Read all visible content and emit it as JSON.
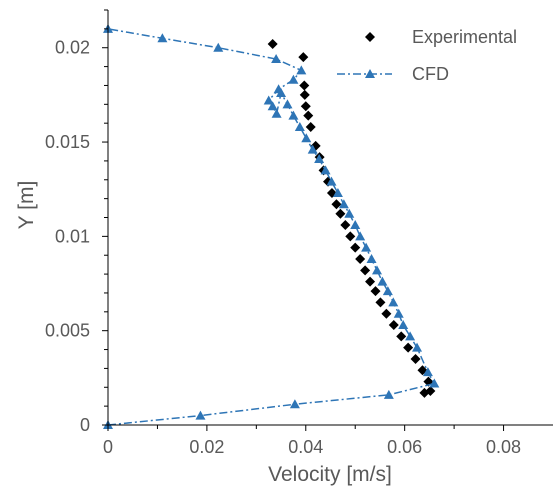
{
  "chart_data": {
    "type": "scatter",
    "xlabel": "Velocity [m/s]",
    "ylabel": "Y [m]",
    "xlim": [
      0,
      0.09
    ],
    "ylim": [
      0,
      0.022
    ],
    "x_ticks": [
      {
        "value": 0,
        "label": "0"
      },
      {
        "value": 0.02,
        "label": "0.02"
      },
      {
        "value": 0.04,
        "label": "0.04"
      },
      {
        "value": 0.06,
        "label": "0.06"
      },
      {
        "value": 0.08,
        "label": "0.08"
      }
    ],
    "y_ticks": [
      {
        "value": 0,
        "label": "0"
      },
      {
        "value": 0.005,
        "label": "0.005"
      },
      {
        "value": 0.01,
        "label": "0.01"
      },
      {
        "value": 0.015,
        "label": "0.015"
      },
      {
        "value": 0.02,
        "label": "0.02"
      }
    ],
    "grid": false,
    "legend_position": "top-right",
    "series": [
      {
        "name": "Experimental",
        "marker": "diamond",
        "line": "none",
        "color": "#000000",
        "points": [
          [
            0.0333,
            0.0202
          ],
          [
            0.0395,
            0.0195
          ],
          [
            0.0397,
            0.018
          ],
          [
            0.0398,
            0.0175
          ],
          [
            0.04,
            0.0169
          ],
          [
            0.0405,
            0.0164
          ],
          [
            0.041,
            0.0158
          ],
          [
            0.042,
            0.0148
          ],
          [
            0.0428,
            0.0142
          ],
          [
            0.0436,
            0.0135
          ],
          [
            0.0445,
            0.0129
          ],
          [
            0.0453,
            0.0123
          ],
          [
            0.0462,
            0.0117
          ],
          [
            0.047,
            0.0112
          ],
          [
            0.048,
            0.0106
          ],
          [
            0.049,
            0.01
          ],
          [
            0.05,
            0.0094
          ],
          [
            0.051,
            0.0088
          ],
          [
            0.052,
            0.0082
          ],
          [
            0.053,
            0.0076
          ],
          [
            0.0541,
            0.0071
          ],
          [
            0.0551,
            0.0065
          ],
          [
            0.0563,
            0.0059
          ],
          [
            0.0578,
            0.0053
          ],
          [
            0.0593,
            0.0047
          ],
          [
            0.0607,
            0.0041
          ],
          [
            0.0622,
            0.0035
          ],
          [
            0.0636,
            0.0029
          ],
          [
            0.0648,
            0.0023
          ],
          [
            0.0652,
            0.0018
          ],
          [
            0.064,
            0.0017
          ]
        ]
      },
      {
        "name": "CFD",
        "marker": "triangle",
        "line": "dash-dot",
        "color": "#2e75b6",
        "points": [
          [
            0.0,
            0.0
          ],
          [
            0.0187,
            0.0005
          ],
          [
            0.0378,
            0.0011
          ],
          [
            0.0568,
            0.0016
          ],
          [
            0.066,
            0.0022
          ],
          [
            0.0647,
            0.0028
          ],
          [
            0.0625,
            0.0041
          ],
          [
            0.0611,
            0.0047
          ],
          [
            0.0597,
            0.0053
          ],
          [
            0.0588,
            0.0059
          ],
          [
            0.0577,
            0.0065
          ],
          [
            0.0566,
            0.0071
          ],
          [
            0.0555,
            0.0076
          ],
          [
            0.0544,
            0.0082
          ],
          [
            0.0533,
            0.0088
          ],
          [
            0.0522,
            0.0094
          ],
          [
            0.051,
            0.01
          ],
          [
            0.05,
            0.0106
          ],
          [
            0.0488,
            0.0112
          ],
          [
            0.0477,
            0.0117
          ],
          [
            0.0465,
            0.0123
          ],
          [
            0.0452,
            0.0129
          ],
          [
            0.044,
            0.0135
          ],
          [
            0.0427,
            0.0141
          ],
          [
            0.0414,
            0.0146
          ],
          [
            0.0401,
            0.0152
          ],
          [
            0.0388,
            0.0158
          ],
          [
            0.0375,
            0.0164
          ],
          [
            0.0363,
            0.017
          ],
          [
            0.035,
            0.0176
          ],
          [
            0.0341,
            0.0165
          ],
          [
            0.0333,
            0.0169
          ],
          [
            0.0325,
            0.0172
          ],
          [
            0.0345,
            0.0178
          ],
          [
            0.0375,
            0.0183
          ],
          [
            0.0391,
            0.0188
          ],
          [
            0.034,
            0.0194
          ],
          [
            0.0223,
            0.02
          ],
          [
            0.011,
            0.0205
          ],
          [
            0.0,
            0.021
          ]
        ]
      }
    ]
  }
}
